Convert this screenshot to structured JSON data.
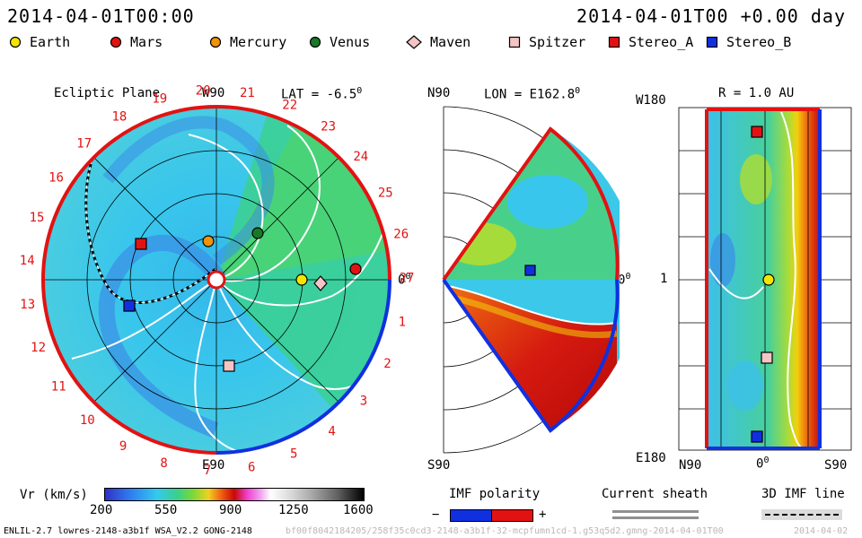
{
  "header": {
    "start_time": "2014-04-01T00:00",
    "current_time": "2014-04-01T00 +0.00 day"
  },
  "legend": [
    {
      "name": "Earth",
      "color": "#f2e600",
      "shape": "circle"
    },
    {
      "name": "Mars",
      "color": "#e31212",
      "shape": "circle"
    },
    {
      "name": "Mercury",
      "color": "#f0920c",
      "shape": "circle"
    },
    {
      "name": "Venus",
      "color": "#157a26",
      "shape": "circle"
    },
    {
      "name": "Maven",
      "color": "#f5c4c4",
      "shape": "diamond"
    },
    {
      "name": "Spitzer",
      "color": "#f5c4c4",
      "shape": "square"
    },
    {
      "name": "Stereo_A",
      "color": "#e31212",
      "shape": "square"
    },
    {
      "name": "Stereo_B",
      "color": "#1030e0",
      "shape": "square"
    }
  ],
  "ecliptic": {
    "title": "Ecliptic Plane",
    "top_label": "W90",
    "bottom_label": "E90",
    "right_label": "0",
    "right_label_sup": "0",
    "lat_label": "LAT = -6.5",
    "lat_sup": "0",
    "rot_numbers": [
      "20",
      "21",
      "22",
      "23",
      "24",
      "25",
      "26",
      "27",
      "1",
      "2",
      "3",
      "4",
      "5",
      "6",
      "7",
      "8",
      "9",
      "10",
      "11",
      "12",
      "13",
      "14",
      "15",
      "16",
      "17",
      "18",
      "19"
    ]
  },
  "meridional": {
    "top_label": "N90",
    "bottom_label": "S90",
    "lon_label": "LON = E162.8",
    "lon_sup": "0",
    "right_label": "0",
    "right_label_sup": "0"
  },
  "sphere": {
    "r_label": "R = 1.0 AU",
    "top_left": "W180",
    "mid_left": "1",
    "bottom_left": "E180",
    "bottom_n": "N90",
    "bottom_mid": "0",
    "bottom_mid_sup": "0",
    "bottom_s": "S90"
  },
  "colorbar": {
    "label": "Vr (km/s)",
    "ticks": [
      "200",
      "550",
      "900",
      "1250",
      "1600"
    ]
  },
  "imf": {
    "title": "IMF polarity",
    "minus": "−",
    "plus": "+",
    "neg_color": "#1030e0",
    "pos_color": "#e31212"
  },
  "current_sheath": {
    "title": "Current sheath"
  },
  "imf_line": {
    "title": "3D IMF line"
  },
  "footer": {
    "model": "ENLIL-2.7 lowres-2148-a3b1f WSA_V2.2 GONG-2148",
    "run_id": "bf00f8042184205/258f35c0cd3-2148-a3b1f-32-mcpfumn1cd-1.g53q5d2.gmng-2014-04-01T00",
    "date": "2014-04-02"
  }
}
